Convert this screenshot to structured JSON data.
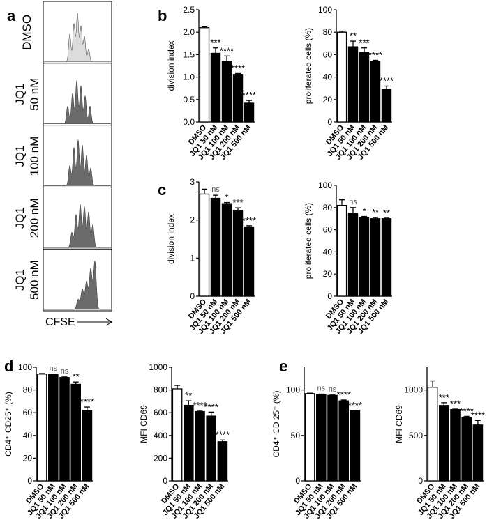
{
  "panel_letters": {
    "a": "a",
    "b": "b",
    "c": "c",
    "d": "d",
    "e": "e"
  },
  "flow_panel": {
    "rows": [
      "DMSO",
      "JQ1\n50 nM",
      "JQ1\n100 nM",
      "JQ1\n200 nM",
      "JQ1\n500 nM"
    ],
    "axis_label": "CFSE",
    "colors": {
      "control": "#dcdcdc",
      "treated": "#6b6b6b"
    }
  },
  "chart_data": [
    {
      "id": "b-division",
      "type": "bar",
      "categories": [
        "DMSO",
        "JQ1 50 nM",
        "JQ1 100 nM",
        "JQ1 200 nM",
        "JQ1 500 nM"
      ],
      "values": [
        2.1,
        1.53,
        1.35,
        1.06,
        0.42
      ],
      "errors": [
        0.02,
        0.12,
        0.12,
        0.02,
        0.06
      ],
      "significance": [
        "",
        "***",
        "****",
        "****",
        "****"
      ],
      "ylabel": "division index",
      "ylim": [
        0,
        2.5
      ],
      "yticks": [
        "0.0",
        "0.5",
        "1.0",
        "1.5",
        "2.0",
        "2.5"
      ]
    },
    {
      "id": "b-proliferated",
      "type": "bar",
      "categories": [
        "DMSO",
        "JQ1 50 nM",
        "JQ1 100 nM",
        "JQ1 200 nM",
        "JQ1 500 nM"
      ],
      "values": [
        80,
        67,
        62,
        54,
        29
      ],
      "errors": [
        1,
        5,
        4,
        1,
        3
      ],
      "significance": [
        "",
        "**",
        "***",
        "****",
        "****"
      ],
      "ylabel": "proliferated cells (%)",
      "ylim": [
        0,
        100
      ],
      "yticks": [
        "0",
        "20",
        "40",
        "60",
        "80",
        "100"
      ]
    },
    {
      "id": "c-division",
      "type": "bar",
      "categories": [
        "DMSO",
        "JQ1 50 nM",
        "JQ1 100 nM",
        "JQ1 200 nM",
        "JQ1 500 nM"
      ],
      "values": [
        2.68,
        2.57,
        2.43,
        2.25,
        1.82
      ],
      "errors": [
        0.13,
        0.08,
        0.03,
        0.07,
        0.03
      ],
      "significance": [
        "",
        "ns",
        "*",
        "***",
        "****"
      ],
      "ylabel": "division index",
      "ylim": [
        0,
        3
      ],
      "yticks": [
        "0",
        "1",
        "2",
        "3"
      ]
    },
    {
      "id": "c-proliferated",
      "type": "bar",
      "categories": [
        "DMSO",
        "JQ1 50 nM",
        "JQ1 100 nM",
        "JQ1 200 nM",
        "JQ1 500 nM"
      ],
      "values": [
        82,
        75,
        71,
        70,
        70
      ],
      "errors": [
        5,
        5,
        1,
        1,
        0.5
      ],
      "significance": [
        "",
        "ns",
        "*",
        "**",
        "**"
      ],
      "ylabel": "proliferated cells (%)",
      "ylim": [
        0,
        100
      ],
      "yticks": [
        "0",
        "20",
        "40",
        "60",
        "80",
        "100"
      ]
    },
    {
      "id": "d-cd25",
      "type": "bar",
      "categories": [
        "DMSO",
        "JQ1 50 nM",
        "JQ1 100 nM",
        "JQ1 200 nM",
        "JQ1 500 nM"
      ],
      "values": [
        94,
        93.5,
        91,
        85,
        62
      ],
      "errors": [
        0.5,
        0.5,
        0.5,
        2,
        3
      ],
      "significance": [
        "",
        "ns",
        "ns",
        "**",
        "****"
      ],
      "ylabel": "CD4⁺ CD25⁺ (%)",
      "ylim": [
        0,
        100
      ],
      "yticks": [
        "0",
        "20",
        "40",
        "60",
        "80",
        "100"
      ]
    },
    {
      "id": "d-cd69",
      "type": "bar",
      "categories": [
        "DMSO",
        "JQ1 50 nM",
        "JQ1 100 nM",
        "JQ1 200 nM",
        "JQ1 500 nM"
      ],
      "values": [
        810,
        665,
        610,
        570,
        345
      ],
      "errors": [
        30,
        40,
        10,
        35,
        15
      ],
      "significance": [
        "",
        "**",
        "****",
        "****",
        "****"
      ],
      "ylabel": "MFI CD69",
      "ylim": [
        0,
        1000
      ],
      "yticks": [
        "0",
        "200",
        "400",
        "600",
        "800",
        "1000"
      ]
    },
    {
      "id": "e-cd25",
      "type": "bar",
      "categories": [
        "DMSO",
        "JQ1 50 nM",
        "JQ1 100 nM",
        "JQ1 200 nM",
        "JQ1 500 nM"
      ],
      "values": [
        96,
        95,
        94,
        88,
        77
      ],
      "errors": [
        0.5,
        0.5,
        0.5,
        1,
        0.5
      ],
      "significance": [
        "",
        "ns",
        "ns",
        "****",
        "****"
      ],
      "ylabel": "CD4⁺ CD 25⁺ (%)",
      "ylim": [
        0,
        125
      ],
      "yticks": [
        "0",
        "50",
        "100"
      ]
    },
    {
      "id": "e-cd69",
      "type": "bar",
      "categories": [
        "DMSO",
        "JQ1 50 nM",
        "JQ1 100 nM",
        "JQ1 200 nM",
        "JQ1 500 nM"
      ],
      "values": [
        1030,
        830,
        785,
        700,
        615
      ],
      "errors": [
        70,
        30,
        5,
        10,
        50
      ],
      "significance": [
        "",
        "***",
        "***",
        "****",
        "****"
      ],
      "ylabel": "MFI CD69",
      "ylim": [
        0,
        1250
      ],
      "yticks": [
        "0",
        "500",
        "1000"
      ]
    }
  ]
}
